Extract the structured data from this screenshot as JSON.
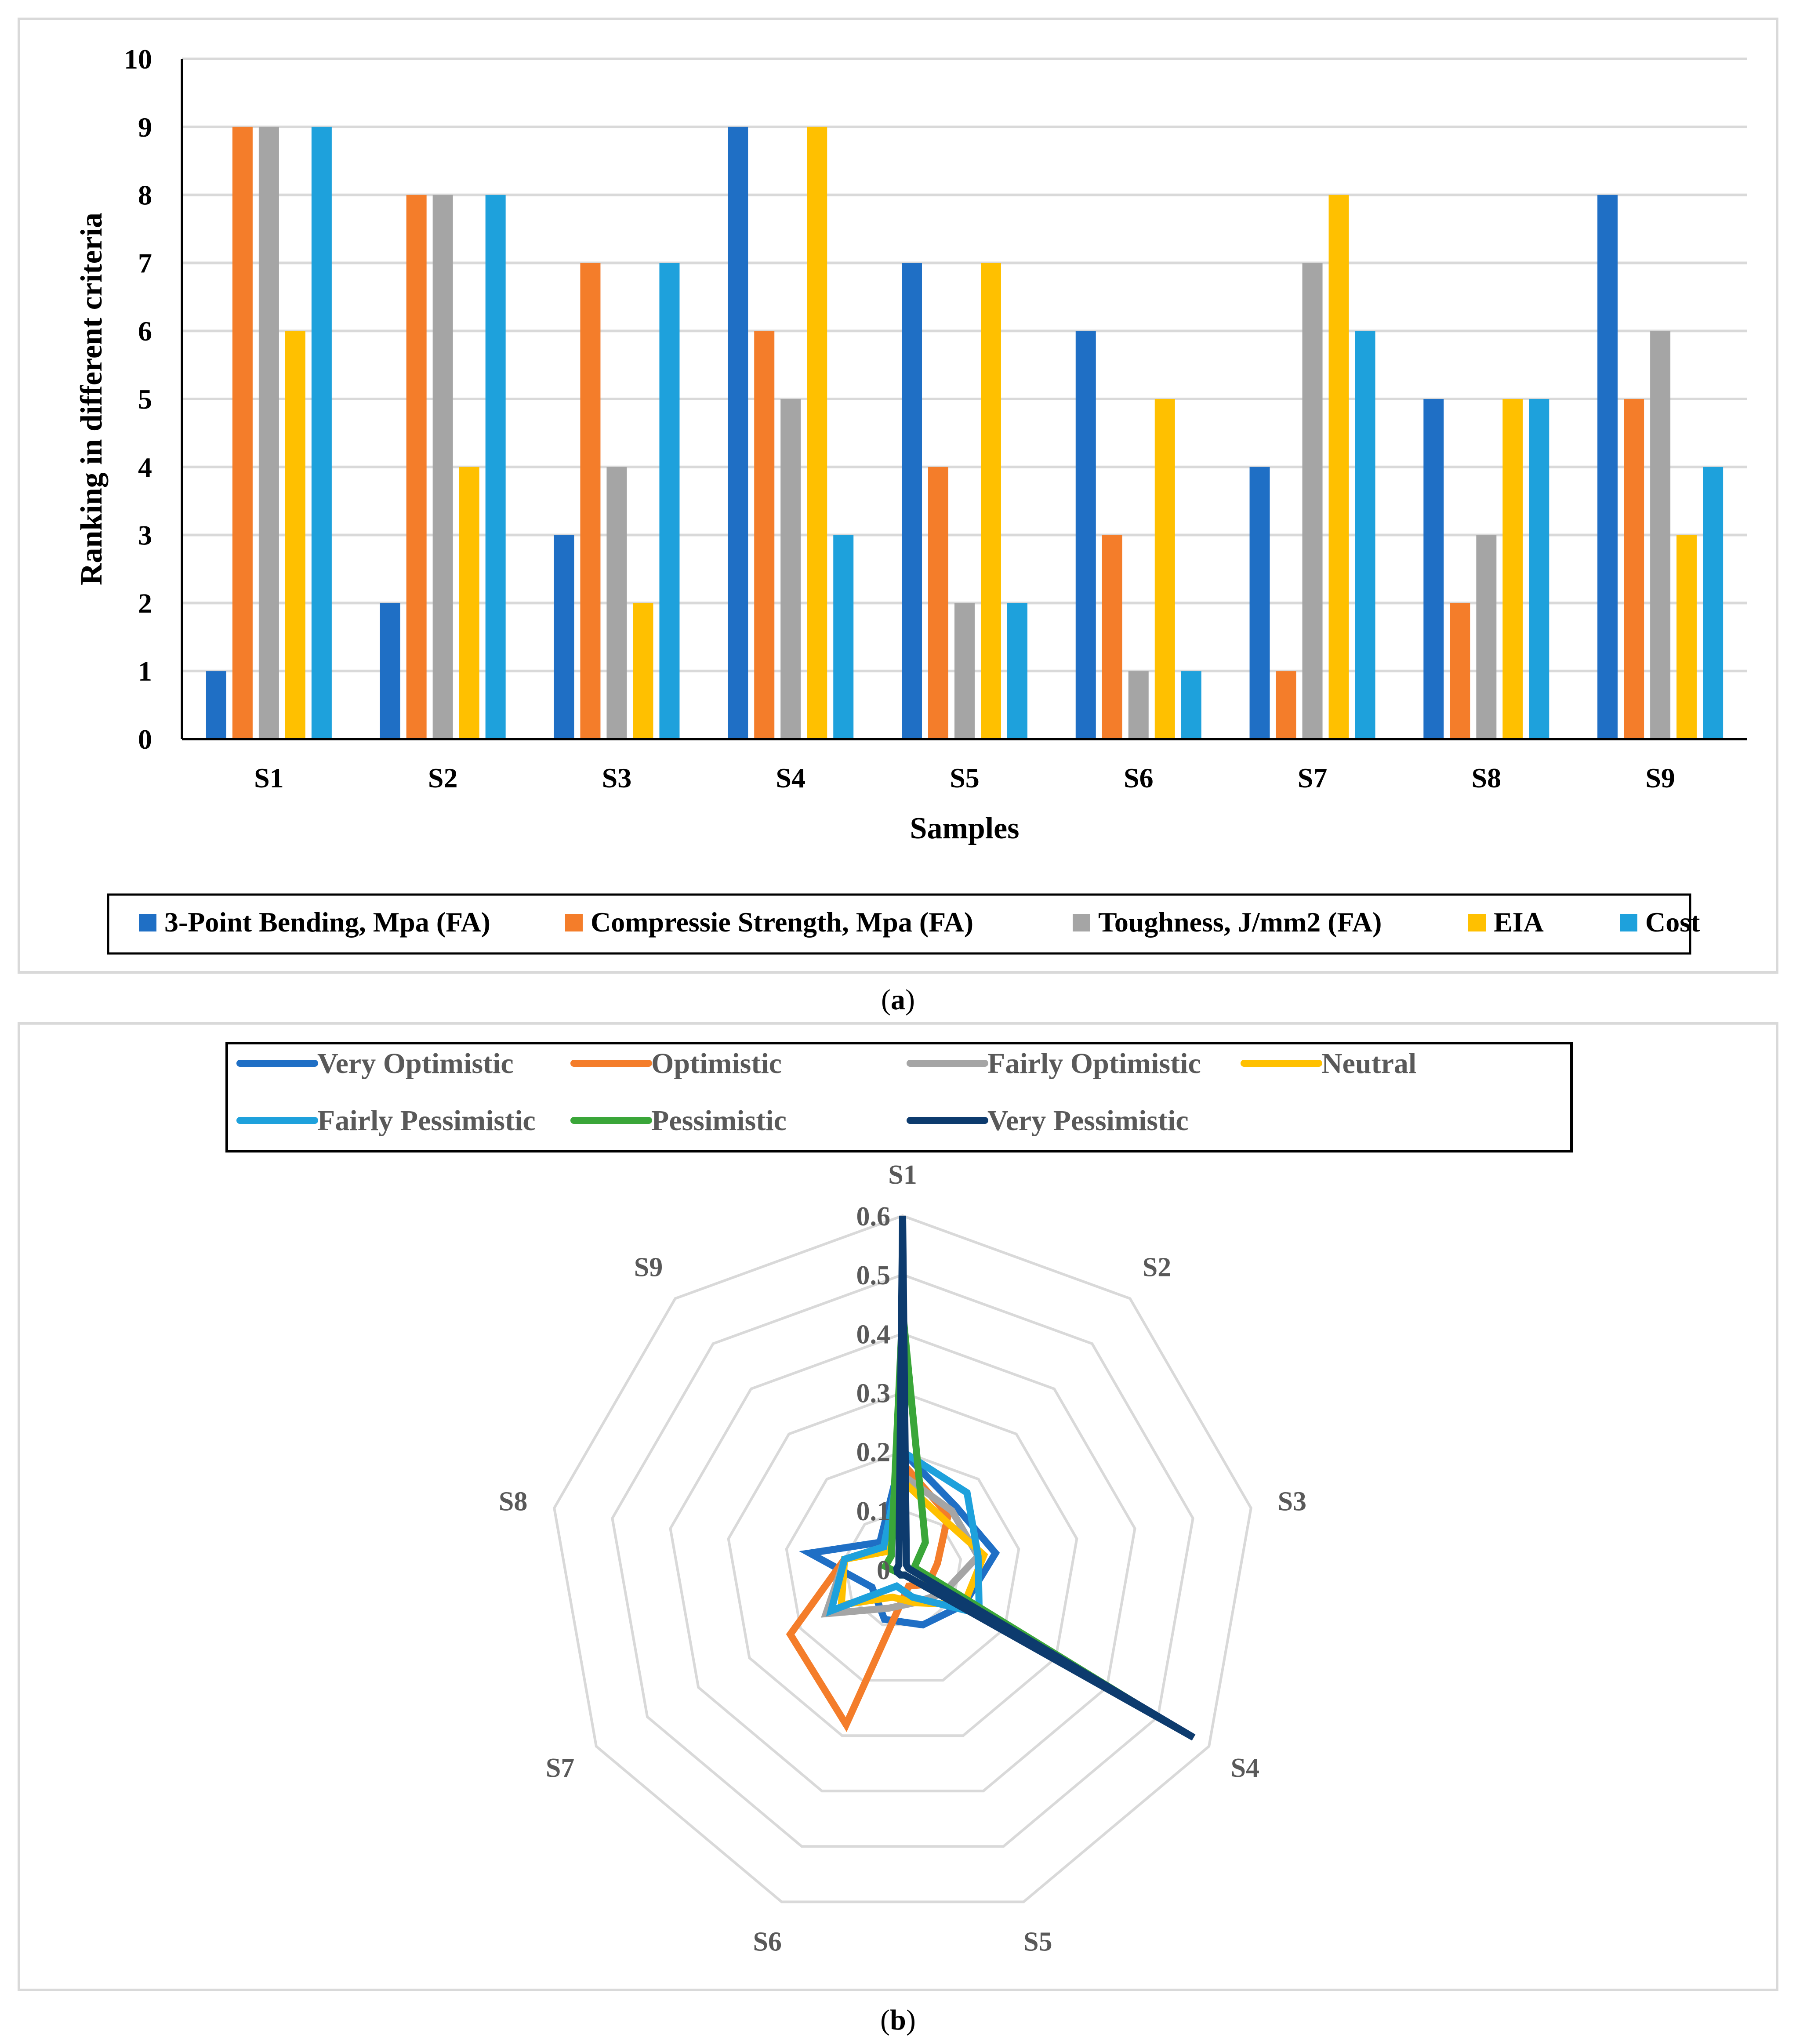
{
  "chart_data": [
    {
      "type": "bar",
      "panel": "a",
      "caption": "a",
      "categories": [
        "S1",
        "S2",
        "S3",
        "S4",
        "S5",
        "S6",
        "S7",
        "S8",
        "S9"
      ],
      "series": [
        {
          "name": "3-Point Bending, Mpa (FA)",
          "color": "#1f6fc5",
          "values": [
            1,
            2,
            3,
            9,
            7,
            6,
            4,
            5,
            8
          ]
        },
        {
          "name": "Compressie Strength, Mpa (FA)",
          "color": "#f47d2a",
          "values": [
            9,
            8,
            7,
            6,
            4,
            3,
            1,
            2,
            5
          ]
        },
        {
          "name": "Toughness, J/mm2 (FA)",
          "color": "#a5a5a5",
          "values": [
            9,
            8,
            4,
            5,
            2,
            1,
            7,
            3,
            6
          ]
        },
        {
          "name": "EIA",
          "color": "#ffc000",
          "values": [
            6,
            4,
            2,
            9,
            7,
            5,
            8,
            5,
            3
          ]
        },
        {
          "name": "Cost",
          "color": "#1ea1dc",
          "values": [
            9,
            8,
            7,
            3,
            2,
            1,
            6,
            5,
            4
          ]
        }
      ],
      "title": "",
      "xlabel": "Samples",
      "ylabel": "Ranking in different criteria",
      "ylim": [
        0,
        10
      ],
      "yticks": [
        "0",
        "1",
        "2",
        "3",
        "4",
        "5",
        "6",
        "7",
        "8",
        "9",
        "10"
      ],
      "grid": true,
      "legend": "bottom"
    },
    {
      "type": "radar",
      "panel": "b",
      "caption": "b",
      "categories": [
        "S1",
        "S2",
        "S3",
        "S4",
        "S5",
        "S6",
        "S7",
        "S8",
        "S9"
      ],
      "rlim": [
        0,
        0.6
      ],
      "rticks": [
        "0",
        "0.1",
        "0.2",
        "0.3",
        "0.4",
        "0.5",
        "0.6"
      ],
      "legend": "top",
      "series": [
        {
          "name": "Very Optimistic",
          "color": "#1f6fc5",
          "values": [
            0.2,
            0.14,
            0.16,
            0.12,
            0.1,
            0.09,
            0.06,
            0.16,
            0.06
          ]
        },
        {
          "name": "Optimistic",
          "color": "#f47d2a",
          "values": [
            0.18,
            0.12,
            0.06,
            0.05,
            0.03,
            0.28,
            0.22,
            0.1,
            0.05
          ]
        },
        {
          "name": "Fairly Optimistic",
          "color": "#a5a5a5",
          "values": [
            0.16,
            0.13,
            0.13,
            0.08,
            0.06,
            0.07,
            0.15,
            0.1,
            0.05
          ]
        },
        {
          "name": "Neutral",
          "color": "#ffc000",
          "values": [
            0.15,
            0.11,
            0.14,
            0.12,
            0.06,
            0.05,
            0.12,
            0.1,
            0.04
          ]
        },
        {
          "name": "Fairly Pessimistic",
          "color": "#1ea1dc",
          "values": [
            0.2,
            0.17,
            0.13,
            0.15,
            0.05,
            0.03,
            0.14,
            0.1,
            0.05
          ]
        },
        {
          "name": "Pessimistic",
          "color": "#3aa639",
          "values": [
            0.44,
            0.06,
            0.02,
            0.5,
            0.01,
            0.01,
            0.01,
            0.03,
            0.03
          ]
        },
        {
          "name": "Very Pessimistic",
          "color": "#0d3b6e",
          "values": [
            0.6,
            0.01,
            0.01,
            0.57,
            0.01,
            0.01,
            0.01,
            0.01,
            0.01
          ]
        }
      ]
    }
  ]
}
